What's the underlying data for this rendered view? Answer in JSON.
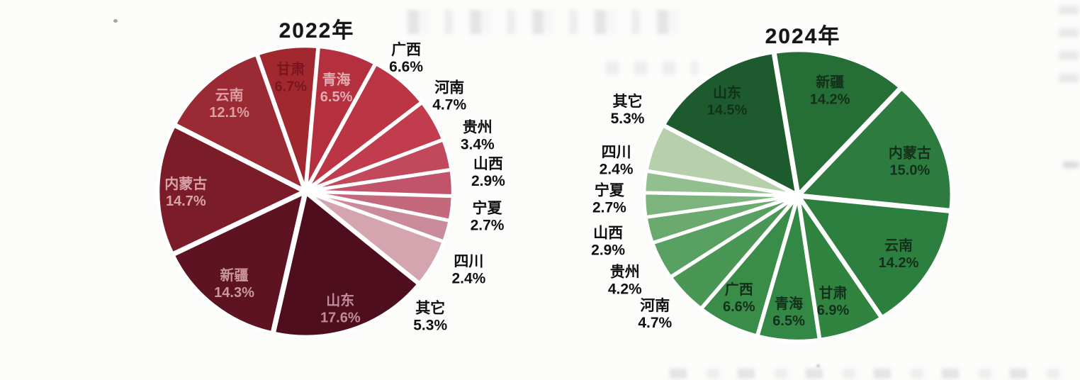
{
  "page": {
    "background_color": "#fcfcfb",
    "description_titles": [
      "2022年",
      "2024年"
    ]
  },
  "chart_data": [
    {
      "type": "pie",
      "title": "2022年",
      "unit": "%",
      "direction": "clockwise",
      "start_angle_deg": 5,
      "legend": "none",
      "outside_label_color": "#101010",
      "inside_label_color": "#d9a4ab",
      "slices": [
        {
          "key": "qinghai",
          "name": "青海",
          "value": 6.5,
          "color": "#b5303e",
          "label_pos": "inside",
          "label_color": "#e2abb1"
        },
        {
          "key": "guangxi",
          "name": "广西",
          "value": 6.6,
          "color": "#bc3545",
          "label_pos": "outside"
        },
        {
          "key": "henan",
          "name": "河南",
          "value": 4.7,
          "color": "#c13c4c",
          "label_pos": "outside"
        },
        {
          "key": "guizhou",
          "name": "贵州",
          "value": 3.4,
          "color": "#c2495c",
          "label_pos": "outside"
        },
        {
          "key": "shanxi",
          "name": "山西",
          "value": 2.9,
          "color": "#c1536a",
          "label_pos": "outside"
        },
        {
          "key": "ningxia",
          "name": "宁夏",
          "value": 2.7,
          "color": "#c4687c",
          "label_pos": "outside"
        },
        {
          "key": "sichuan",
          "name": "四川",
          "value": 2.4,
          "color": "#ca8b9b",
          "label_pos": "outside"
        },
        {
          "key": "other",
          "name": "其它",
          "value": 5.3,
          "color": "#d4a5af",
          "label_pos": "outside"
        },
        {
          "key": "shandong",
          "name": "山东",
          "value": 17.6,
          "color": "#4f0e1d",
          "label_pos": "inside",
          "label_color": "#bd8e99"
        },
        {
          "key": "xinjiang",
          "name": "新疆",
          "value": 14.3,
          "color": "#5d1322",
          "label_pos": "inside",
          "label_color": "#c9989f"
        },
        {
          "key": "neimenggu",
          "name": "内蒙古",
          "value": 14.7,
          "color": "#7b1d29",
          "label_pos": "inside",
          "label_color": "#d8a3a8"
        },
        {
          "key": "yunnan",
          "name": "云南",
          "value": 12.1,
          "color": "#9a2a34",
          "label_pos": "inside",
          "label_color": "#db9fa4"
        },
        {
          "key": "gansu",
          "name": "甘肃",
          "value": 6.7,
          "color": "#a22830",
          "label_pos": "inside",
          "label_color": "#7a141d"
        }
      ]
    },
    {
      "type": "pie",
      "title": "2024年",
      "unit": "%",
      "direction": "clockwise",
      "start_angle_deg": -9,
      "legend": "none",
      "outside_label_color": "#101010",
      "inside_label_color": "#13301a",
      "slices": [
        {
          "key": "xinjiang",
          "name": "新疆",
          "value": 14.2,
          "color": "#256e35",
          "label_pos": "inside"
        },
        {
          "key": "neimenggu",
          "name": "内蒙古",
          "value": 15.0,
          "color": "#2d7b3e",
          "label_pos": "inside"
        },
        {
          "key": "yunnan",
          "name": "云南",
          "value": 14.2,
          "color": "#2d7f40",
          "label_pos": "inside"
        },
        {
          "key": "gansu",
          "name": "甘肃",
          "value": 6.9,
          "color": "#308440",
          "label_pos": "inside"
        },
        {
          "key": "qinghai",
          "name": "青海",
          "value": 6.5,
          "color": "#348845",
          "label_pos": "inside"
        },
        {
          "key": "guangxi",
          "name": "广西",
          "value": 6.6,
          "color": "#3a8c49",
          "label_pos": "inside"
        },
        {
          "key": "henan",
          "name": "河南",
          "value": 4.7,
          "color": "#4a9755",
          "label_pos": "outside"
        },
        {
          "key": "guizhou",
          "name": "贵州",
          "value": 4.2,
          "color": "#58a061",
          "label_pos": "outside"
        },
        {
          "key": "shanxi",
          "name": "山西",
          "value": 2.9,
          "color": "#6aaa6e",
          "label_pos": "outside"
        },
        {
          "key": "ningxia",
          "name": "宁夏",
          "value": 2.7,
          "color": "#7db47d",
          "label_pos": "outside"
        },
        {
          "key": "sichuan",
          "name": "四川",
          "value": 2.4,
          "color": "#92bf8e",
          "label_pos": "outside"
        },
        {
          "key": "other",
          "name": "其它",
          "value": 5.3,
          "color": "#b5d0ab",
          "label_pos": "outside"
        },
        {
          "key": "shandong",
          "name": "山东",
          "value": 14.5,
          "color": "#1d5a2d",
          "label_pos": "inside"
        }
      ]
    }
  ]
}
